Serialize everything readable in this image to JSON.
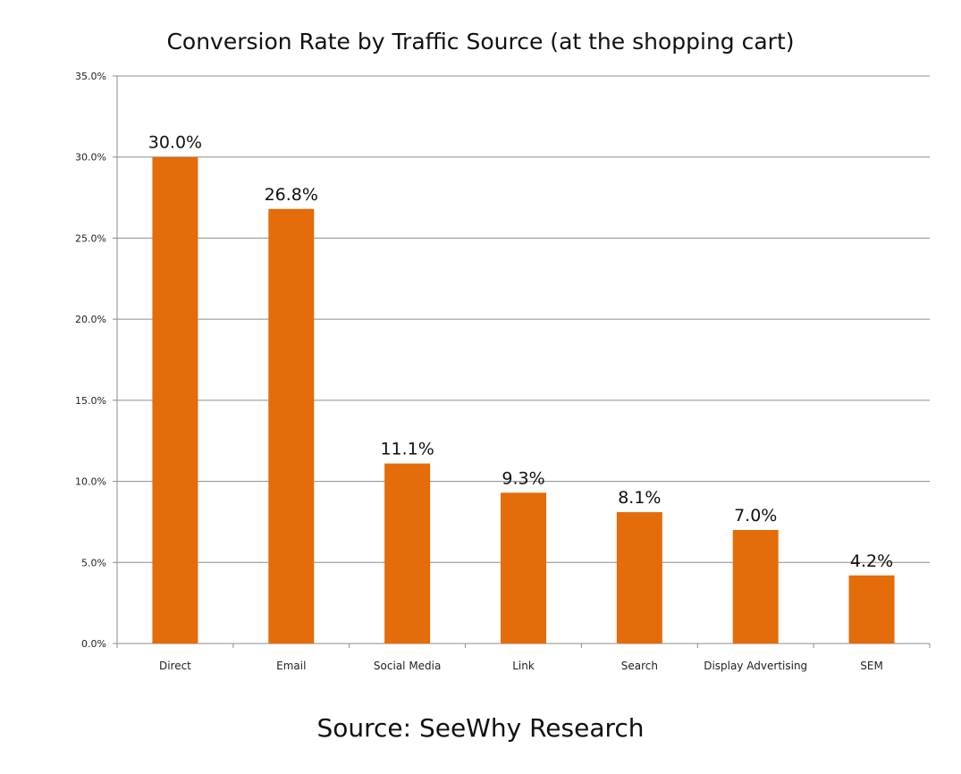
{
  "chart_data": {
    "type": "bar",
    "title": "Conversion Rate by Traffic Source (at the shopping cart)",
    "source": "Source: SeeWhy Research",
    "categories": [
      "Direct",
      "Email",
      "Social Media",
      "Link",
      "Search",
      "Display Advertising",
      "SEM"
    ],
    "values": [
      30.0,
      26.8,
      11.1,
      9.3,
      8.1,
      7.0,
      4.2
    ],
    "data_labels": [
      "30.0%",
      "26.8%",
      "11.1%",
      "9.3%",
      "8.1%",
      "7.0%",
      "4.2%"
    ],
    "ylim": [
      0,
      35
    ],
    "yticks": [
      "0.0%",
      "5.0%",
      "10.0%",
      "15.0%",
      "20.0%",
      "25.0%",
      "30.0%",
      "35.0%"
    ],
    "grid": true,
    "bar_color": "#E46C0A",
    "xlabel": "",
    "ylabel": ""
  }
}
